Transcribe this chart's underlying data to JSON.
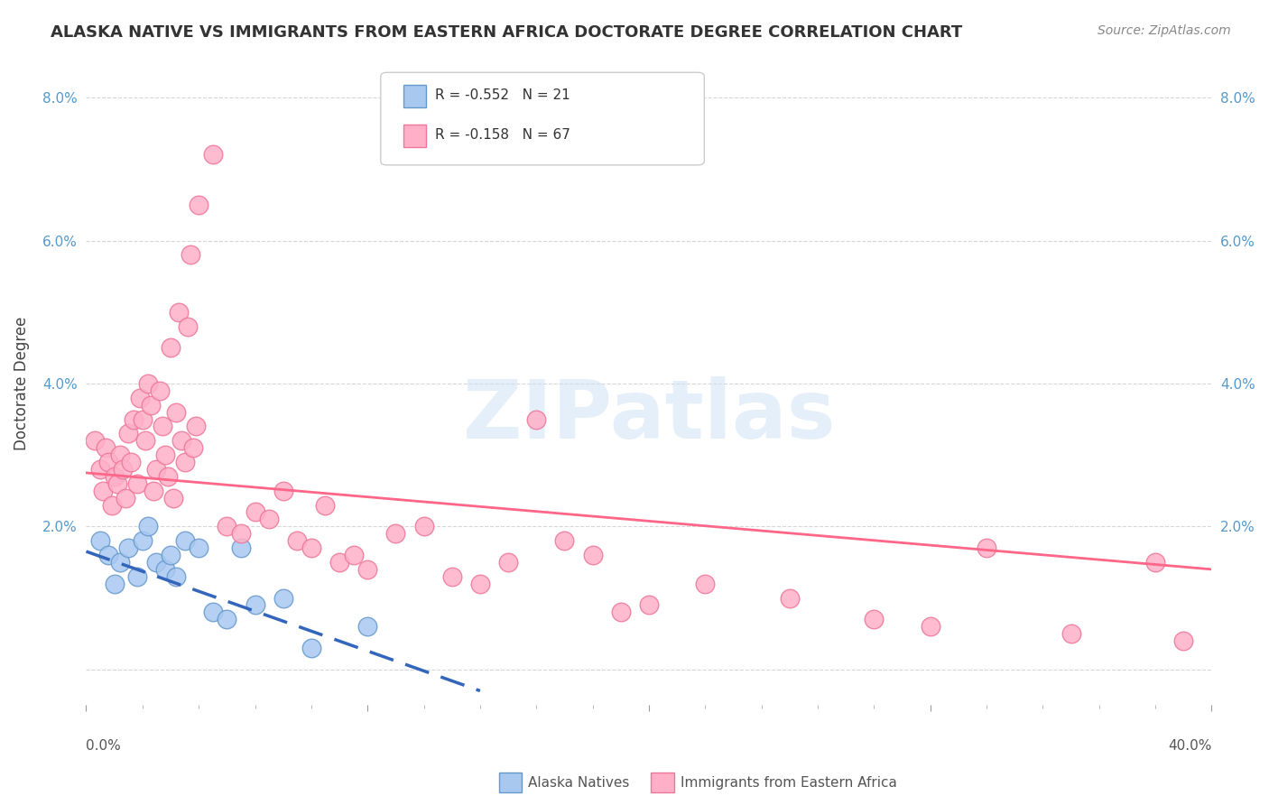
{
  "title": "ALASKA NATIVE VS IMMIGRANTS FROM EASTERN AFRICA DOCTORATE DEGREE CORRELATION CHART",
  "source": "Source: ZipAtlas.com",
  "ylabel": "Doctorate Degree",
  "xlim": [
    0.0,
    40.0
  ],
  "ylim": [
    -0.5,
    8.5
  ],
  "background_color": "#ffffff",
  "watermark_text": "ZIPatlas",
  "legend": {
    "blue_label": "R = -0.552   N = 21",
    "pink_label": "R = -0.158   N = 67"
  },
  "alaska_natives": {
    "x": [
      0.5,
      0.8,
      1.0,
      1.2,
      1.5,
      1.8,
      2.0,
      2.2,
      2.5,
      2.8,
      3.0,
      3.2,
      3.5,
      4.0,
      4.5,
      5.0,
      5.5,
      6.0,
      7.0,
      8.0,
      10.0
    ],
    "y": [
      1.8,
      1.6,
      1.2,
      1.5,
      1.7,
      1.3,
      1.8,
      2.0,
      1.5,
      1.4,
      1.6,
      1.3,
      1.8,
      1.7,
      0.8,
      0.7,
      1.7,
      0.9,
      1.0,
      0.3,
      0.6
    ],
    "color": "#a8c8f0",
    "edge_color": "#6699cc",
    "line_color": "#3366bb",
    "trend_start_x": 0.0,
    "trend_start_y": 1.65,
    "trend_end_x": 14.0,
    "trend_end_y": -0.3
  },
  "eastern_africa": {
    "x": [
      0.3,
      0.5,
      0.6,
      0.7,
      0.8,
      0.9,
      1.0,
      1.1,
      1.2,
      1.3,
      1.4,
      1.5,
      1.6,
      1.7,
      1.8,
      1.9,
      2.0,
      2.1,
      2.2,
      2.3,
      2.4,
      2.5,
      2.6,
      2.7,
      2.8,
      2.9,
      3.0,
      3.1,
      3.2,
      3.3,
      3.4,
      3.5,
      3.6,
      3.7,
      3.8,
      3.9,
      4.0,
      4.5,
      5.0,
      5.5,
      6.0,
      6.5,
      7.0,
      7.5,
      8.0,
      8.5,
      9.0,
      9.5,
      10.0,
      11.0,
      12.0,
      13.0,
      14.0,
      15.0,
      16.0,
      17.0,
      18.0,
      19.0,
      20.0,
      22.0,
      25.0,
      28.0,
      30.0,
      32.0,
      35.0,
      38.0,
      39.0
    ],
    "y": [
      3.2,
      2.8,
      2.5,
      3.1,
      2.9,
      2.3,
      2.7,
      2.6,
      3.0,
      2.8,
      2.4,
      3.3,
      2.9,
      3.5,
      2.6,
      3.8,
      3.5,
      3.2,
      4.0,
      3.7,
      2.5,
      2.8,
      3.9,
      3.4,
      3.0,
      2.7,
      4.5,
      2.4,
      3.6,
      5.0,
      3.2,
      2.9,
      4.8,
      5.8,
      3.1,
      3.4,
      6.5,
      7.2,
      2.0,
      1.9,
      2.2,
      2.1,
      2.5,
      1.8,
      1.7,
      2.3,
      1.5,
      1.6,
      1.4,
      1.9,
      2.0,
      1.3,
      1.2,
      1.5,
      3.5,
      1.8,
      1.6,
      0.8,
      0.9,
      1.2,
      1.0,
      0.7,
      0.6,
      1.7,
      0.5,
      1.5,
      0.4
    ],
    "color": "#ffb0c8",
    "edge_color": "#ee7799",
    "line_color": "#ff6688",
    "trend_start_x": 0.0,
    "trend_start_y": 2.75,
    "trend_end_x": 40.0,
    "trend_end_y": 1.4
  }
}
